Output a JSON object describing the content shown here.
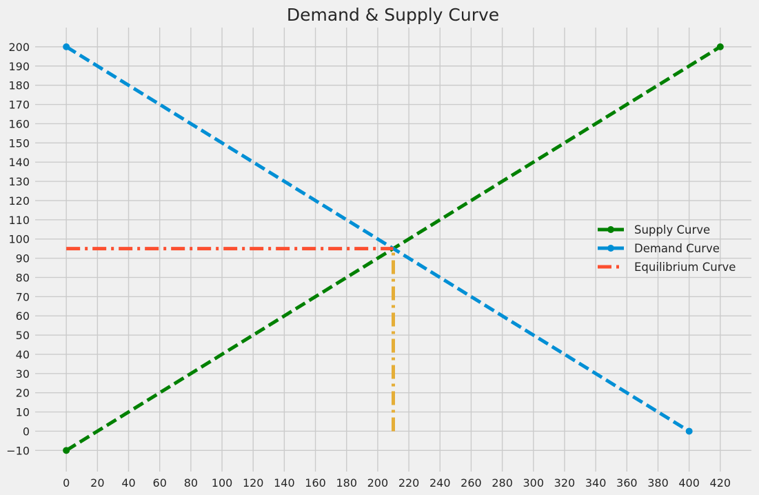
{
  "chart_data": {
    "type": "line",
    "title": "Demand & Supply Curve",
    "xlabel": "",
    "ylabel": "",
    "xlim": [
      -20,
      440
    ],
    "ylim": [
      -21,
      210
    ],
    "grid": true,
    "legend_position": "center-right",
    "x_ticks": [
      "0",
      "20",
      "40",
      "60",
      "80",
      "100",
      "120",
      "140",
      "160",
      "180",
      "200",
      "220",
      "240",
      "260",
      "280",
      "300",
      "320",
      "340",
      "360",
      "380",
      "400",
      "420"
    ],
    "y_ticks": [
      "200",
      "190",
      "180",
      "170",
      "160",
      "150",
      "140",
      "130",
      "120",
      "110",
      "100",
      "90",
      "80",
      "70",
      "60",
      "50",
      "40",
      "30",
      "20",
      "10",
      "0",
      "−10"
    ],
    "series": [
      {
        "name": "Supply Curve",
        "color": "#008000",
        "style": "dashed",
        "markers": true,
        "x": [
          0,
          420
        ],
        "y": [
          -10,
          200
        ]
      },
      {
        "name": "Demand Curve",
        "color": "#008fd5",
        "style": "dashed",
        "markers": true,
        "x": [
          0,
          400
        ],
        "y": [
          200,
          0
        ]
      },
      {
        "name": "Equilibrium Curve",
        "color": "#fc4f30",
        "style": "dashdot",
        "markers": false,
        "x": [
          0,
          210
        ],
        "y": [
          95,
          95
        ]
      },
      {
        "color": "#e5ae38",
        "style": "dashdot",
        "markers": false,
        "x": [
          210,
          210
        ],
        "y": [
          0,
          95
        ]
      }
    ]
  }
}
